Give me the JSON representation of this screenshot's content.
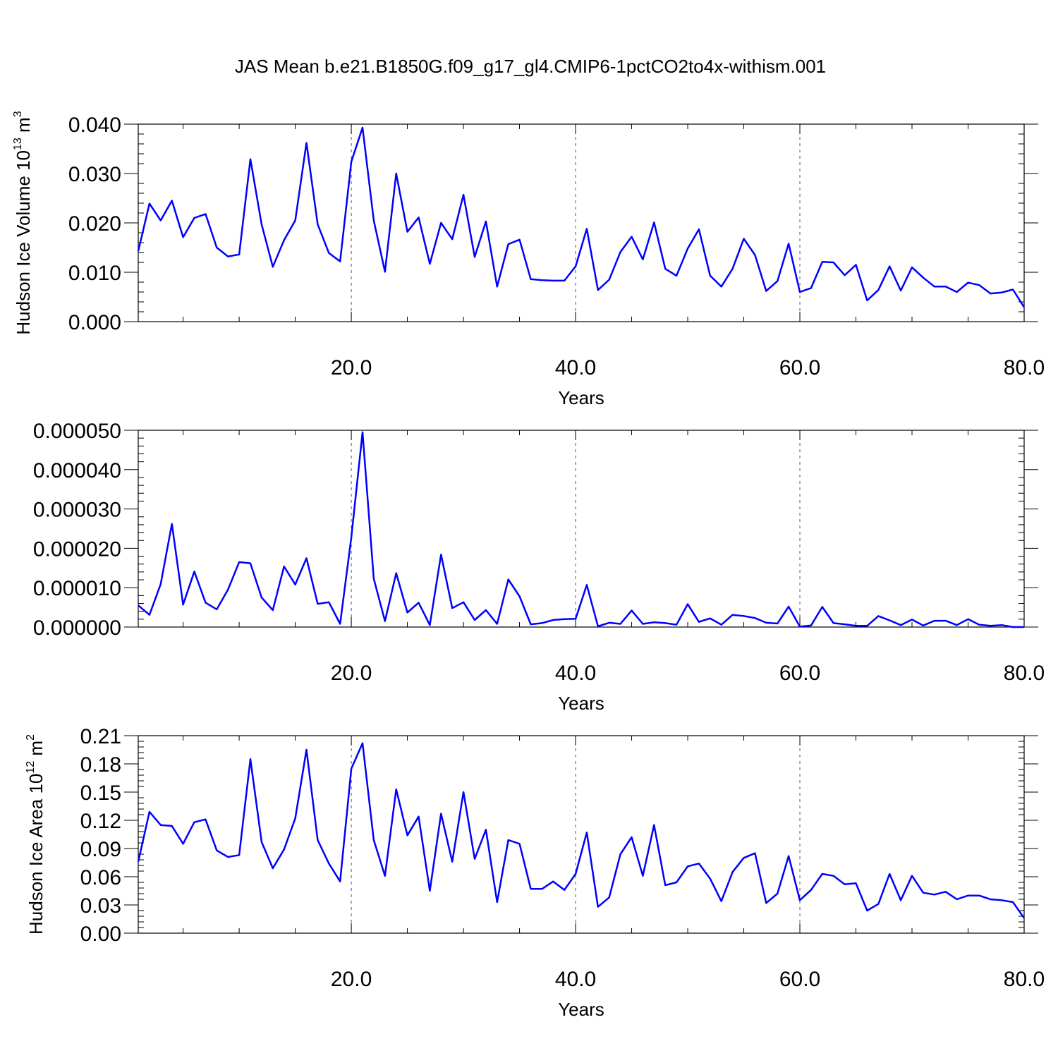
{
  "title": "JAS Mean b.e21.B1850G.f09_g17_gl4.CMIP6-1pctCO2to4x-withism.001",
  "line_color": "#0000ff",
  "chart_data": [
    {
      "type": "line",
      "title": "",
      "xlabel": "Years",
      "ylabel": "Hudson Ice Volume 10",
      "ylabel_sup": "13",
      "ylabel_unit": " m",
      "ylabel_unit_sup": "3",
      "xlim": [
        1,
        80
      ],
      "ylim": [
        0.0,
        0.04
      ],
      "xticks": [
        20,
        40,
        60,
        80
      ],
      "xtick_labels": [
        "20.0",
        "40.0",
        "60.0",
        "80.0"
      ],
      "yticks": [
        0.0,
        0.01,
        0.02,
        0.03,
        0.04
      ],
      "ytick_labels": [
        "0.000",
        "0.010",
        "0.020",
        "0.030",
        "0.040"
      ],
      "grid": "dashed vertical at x ticks",
      "x": [
        1,
        2,
        3,
        4,
        5,
        6,
        7,
        8,
        9,
        10,
        11,
        12,
        13,
        14,
        15,
        16,
        17,
        18,
        19,
        20,
        21,
        22,
        23,
        24,
        25,
        26,
        27,
        28,
        29,
        30,
        31,
        32,
        33,
        34,
        35,
        36,
        37,
        38,
        39,
        40,
        41,
        42,
        43,
        44,
        45,
        46,
        47,
        48,
        49,
        50,
        51,
        52,
        53,
        54,
        55,
        56,
        57,
        58,
        59,
        60,
        61,
        62,
        63,
        64,
        65,
        66,
        67,
        68,
        69,
        70,
        71,
        72,
        73,
        74,
        75,
        76,
        77,
        78,
        79,
        80
      ],
      "series": [
        {
          "values": [
            0.0143,
            0.0239,
            0.0205,
            0.0245,
            0.0171,
            0.021,
            0.0218,
            0.015,
            0.0132,
            0.0136,
            0.0329,
            0.0197,
            0.0111,
            0.0165,
            0.0205,
            0.0362,
            0.0197,
            0.0139,
            0.0122,
            0.0324,
            0.0393,
            0.0205,
            0.0101,
            0.03,
            0.0182,
            0.0211,
            0.0117,
            0.02,
            0.0167,
            0.0257,
            0.0131,
            0.0203,
            0.0071,
            0.0157,
            0.0166,
            0.0086,
            0.0084,
            0.0083,
            0.0083,
            0.0112,
            0.0188,
            0.0064,
            0.0085,
            0.0141,
            0.0172,
            0.0126,
            0.0201,
            0.0107,
            0.0093,
            0.0148,
            0.0187,
            0.0093,
            0.0071,
            0.0107,
            0.0168,
            0.0135,
            0.0062,
            0.0082,
            0.0158,
            0.006,
            0.0068,
            0.0121,
            0.012,
            0.0094,
            0.0115,
            0.0043,
            0.0064,
            0.0112,
            0.0063,
            0.011,
            0.0089,
            0.0071,
            0.0071,
            0.006,
            0.0079,
            0.0074,
            0.0057,
            0.0059,
            0.0065,
            0.0029
          ]
        }
      ]
    },
    {
      "type": "line",
      "title": "",
      "xlabel": "Years",
      "ylabel": "",
      "xlim": [
        1,
        80
      ],
      "ylim": [
        0.0,
        5e-05
      ],
      "xticks": [
        20,
        40,
        60,
        80
      ],
      "xtick_labels": [
        "20.0",
        "40.0",
        "60.0",
        "80.0"
      ],
      "yticks": [
        0.0,
        1e-05,
        2e-05,
        3e-05,
        4e-05,
        5e-05
      ],
      "ytick_labels": [
        "0.000000",
        "0.000010",
        "0.000020",
        "0.000030",
        "0.000040",
        "0.000050"
      ],
      "grid": "dashed vertical at x ticks",
      "x": [
        1,
        2,
        3,
        4,
        5,
        6,
        7,
        8,
        9,
        10,
        11,
        12,
        13,
        14,
        15,
        16,
        17,
        18,
        19,
        20,
        21,
        22,
        23,
        24,
        25,
        26,
        27,
        28,
        29,
        30,
        31,
        32,
        33,
        34,
        35,
        36,
        37,
        38,
        39,
        40,
        41,
        42,
        43,
        44,
        45,
        46,
        47,
        48,
        49,
        50,
        51,
        52,
        53,
        54,
        55,
        56,
        57,
        58,
        59,
        60,
        61,
        62,
        63,
        64,
        65,
        66,
        67,
        68,
        69,
        70,
        71,
        72,
        73,
        74,
        75,
        76,
        77,
        78,
        79,
        80
      ],
      "series": [
        {
          "values": [
            5.5e-06,
            3.1e-06,
            1.09e-05,
            2.62e-05,
            5.7e-06,
            1.41e-05,
            6.2e-06,
            4.5e-06,
            9.5e-06,
            1.65e-05,
            1.62e-05,
            7.5e-06,
            4.3e-06,
            1.54e-05,
            1.08e-05,
            1.75e-05,
            5.9e-06,
            6.3e-06,
            8e-07,
            2.28e-05,
            4.95e-05,
            1.23e-05,
            1.5e-06,
            1.37e-05,
            3.7e-06,
            6.2e-06,
            5e-07,
            1.84e-05,
            4.8e-06,
            6.3e-06,
            1.8e-06,
            4.3e-06,
            8e-07,
            1.21e-05,
            7.8e-06,
            7e-07,
            1e-06,
            1.8e-06,
            2e-06,
            2.1e-06,
            1.07e-05,
            2e-07,
            1.1e-06,
            8e-07,
            4.2e-06,
            8e-07,
            1.2e-06,
            1e-06,
            6e-07,
            5.8e-06,
            1.3e-06,
            2.2e-06,
            6e-07,
            3.1e-06,
            2.8e-06,
            2.3e-06,
            1.1e-06,
            9e-07,
            5.2e-06,
            1e-07,
            4e-07,
            5.1e-06,
            1e-06,
            7e-07,
            3e-07,
            3e-07,
            2.8e-06,
            1.7e-06,
            5e-07,
            1.9e-06,
            4e-07,
            1.6e-06,
            1.6e-06,
            5e-07,
            2e-06,
            6e-07,
            3e-07,
            5e-07,
            0.0,
            0.0
          ]
        }
      ]
    },
    {
      "type": "line",
      "title": "",
      "xlabel": "Years",
      "ylabel": "Hudson Ice Area 10",
      "ylabel_sup": "12",
      "ylabel_unit": " m",
      "ylabel_unit_sup": "2",
      "xlim": [
        1,
        80
      ],
      "ylim": [
        0.0,
        0.21
      ],
      "xticks": [
        20,
        40,
        60,
        80
      ],
      "xtick_labels": [
        "20.0",
        "40.0",
        "60.0",
        "80.0"
      ],
      "yticks": [
        0.0,
        0.03,
        0.06,
        0.09,
        0.12,
        0.15,
        0.18,
        0.21
      ],
      "ytick_labels": [
        "0.00",
        "0.03",
        "0.06",
        "0.09",
        "0.12",
        "0.15",
        "0.18",
        "0.21"
      ],
      "grid": "dashed vertical at x ticks",
      "x": [
        1,
        2,
        3,
        4,
        5,
        6,
        7,
        8,
        9,
        10,
        11,
        12,
        13,
        14,
        15,
        16,
        17,
        18,
        19,
        20,
        21,
        22,
        23,
        24,
        25,
        26,
        27,
        28,
        29,
        30,
        31,
        32,
        33,
        34,
        35,
        36,
        37,
        38,
        39,
        40,
        41,
        42,
        43,
        44,
        45,
        46,
        47,
        48,
        49,
        50,
        51,
        52,
        53,
        54,
        55,
        56,
        57,
        58,
        59,
        60,
        61,
        62,
        63,
        64,
        65,
        66,
        67,
        68,
        69,
        70,
        71,
        72,
        73,
        74,
        75,
        76,
        77,
        78,
        79,
        80
      ],
      "series": [
        {
          "values": [
            0.076,
            0.129,
            0.115,
            0.114,
            0.095,
            0.118,
            0.121,
            0.088,
            0.081,
            0.083,
            0.185,
            0.097,
            0.069,
            0.089,
            0.122,
            0.195,
            0.099,
            0.074,
            0.055,
            0.175,
            0.202,
            0.099,
            0.061,
            0.153,
            0.104,
            0.124,
            0.045,
            0.127,
            0.076,
            0.15,
            0.079,
            0.11,
            0.033,
            0.099,
            0.095,
            0.047,
            0.047,
            0.055,
            0.046,
            0.063,
            0.107,
            0.028,
            0.038,
            0.084,
            0.102,
            0.061,
            0.115,
            0.051,
            0.054,
            0.071,
            0.074,
            0.058,
            0.034,
            0.065,
            0.08,
            0.085,
            0.032,
            0.042,
            0.082,
            0.035,
            0.046,
            0.063,
            0.061,
            0.052,
            0.053,
            0.024,
            0.031,
            0.063,
            0.035,
            0.061,
            0.043,
            0.041,
            0.044,
            0.036,
            0.04,
            0.04,
            0.036,
            0.035,
            0.033,
            0.016
          ]
        }
      ]
    }
  ]
}
